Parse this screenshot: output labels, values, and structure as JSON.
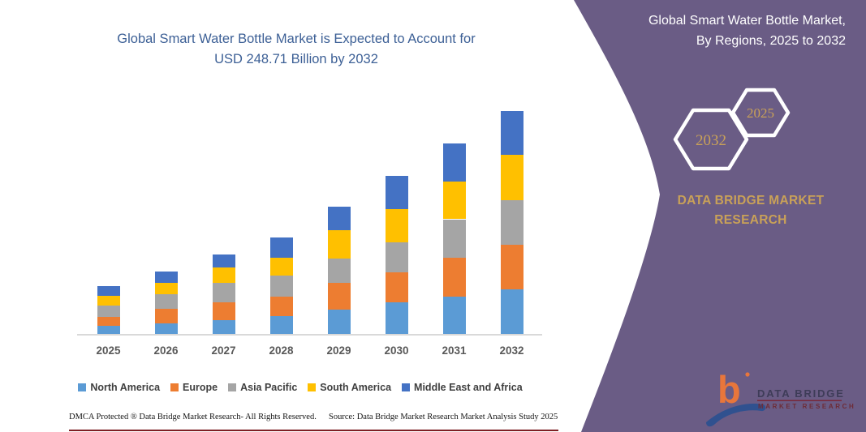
{
  "chart": {
    "title_line1": "Global Smart Water Bottle Market is Expected to Account for",
    "title_line2": "USD 248.71 Billion by 2032"
  },
  "chart_data": {
    "type": "bar",
    "stacked": true,
    "title": "Global Smart Water Bottle Market is Expected to Account for USD 248.71 Billion by 2032",
    "units": "USD Billion",
    "categories": [
      "2025",
      "2026",
      "2027",
      "2028",
      "2029",
      "2030",
      "2031",
      "2032"
    ],
    "series": [
      {
        "name": "North America",
        "color": "#5B9BD5",
        "values": [
          9.7,
          12.6,
          16.5,
          20.4,
          27.9,
          36.0,
          42.6,
          50.1
        ]
      },
      {
        "name": "Europe",
        "color": "#ED7D31",
        "values": [
          10.5,
          15.9,
          19.5,
          22.2,
          30.0,
          33.0,
          42.9,
          49.5
        ]
      },
      {
        "name": "Asia Pacific",
        "color": "#A5A5A5",
        "values": [
          12.3,
          16.5,
          21.6,
          22.8,
          27.0,
          34.0,
          42.9,
          50.4
        ]
      },
      {
        "name": "South America",
        "color": "#FFC000",
        "values": [
          10.5,
          12.9,
          17.4,
          20.1,
          31.5,
          37.0,
          42.0,
          50.1
        ]
      },
      {
        "name": "Middle East and Africa",
        "color": "#4472C4",
        "values": [
          11.0,
          12.6,
          14.1,
          22.5,
          26.1,
          37.0,
          42.0,
          48.61
        ]
      }
    ],
    "totals": [
      54.0,
      70.5,
      89.1,
      108.0,
      142.5,
      177.0,
      212.4,
      248.71
    ],
    "xlabel": "",
    "ylabel": "",
    "ylim": [
      0,
      260
    ],
    "y_axis_visible": false,
    "grid": false,
    "legend_position": "bottom"
  },
  "footer": {
    "dmca": "DMCA Protected ® Data Bridge Market Research-  All Rights Reserved.",
    "source": "Source: Data Bridge Market Research  Market Analysis Study 2025"
  },
  "panel": {
    "title_line1": "Global Smart Water Bottle Market,",
    "title_line2": "By Regions, 2025 to 2032",
    "hexagon_back_label": "2032",
    "hexagon_front_label": "2025",
    "brand_line1": "DATA BRIDGE MARKET",
    "brand_line2": "RESEARCH",
    "colors": {
      "background": "#6A5C85",
      "accent_gold": "#C9A158",
      "title_blue": "#3D6096"
    }
  },
  "logo": {
    "mark_letter": "b",
    "text_line1": "DATA BRIDGE",
    "text_line2": "MARKET RESEARCH"
  }
}
